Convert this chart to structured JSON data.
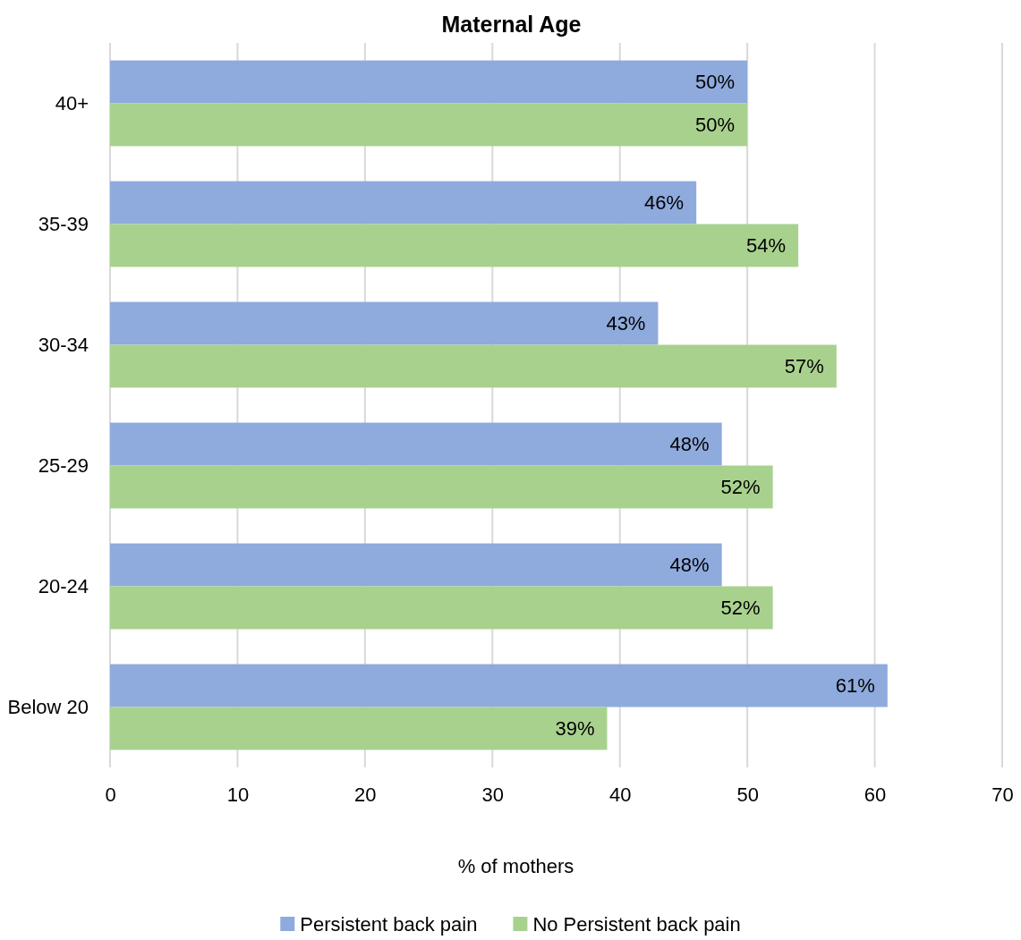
{
  "chart_data": {
    "type": "bar",
    "orientation": "horizontal",
    "title": "Maternal Age",
    "xlabel": "% of mothers",
    "categories": [
      "40+",
      "35-39",
      "30-34",
      "25-29",
      "20-24",
      "Below 20"
    ],
    "series": [
      {
        "name": "Persistent back pain",
        "color": "#8faadc",
        "values": [
          50,
          46,
          43,
          48,
          48,
          61
        ],
        "value_labels": [
          "50%",
          "46%",
          "43%",
          "48%",
          "48%",
          "61%"
        ]
      },
      {
        "name": "No Persistent back pain",
        "color": "#a9d18e",
        "values": [
          50,
          54,
          57,
          52,
          52,
          39
        ],
        "value_labels": [
          "50%",
          "54%",
          "57%",
          "52%",
          "52%",
          "39%"
        ]
      }
    ],
    "xlim": [
      0,
      70
    ],
    "xticks": [
      0,
      10,
      20,
      30,
      40,
      50,
      60,
      70
    ],
    "grid": "x",
    "legend": "bottom"
  }
}
